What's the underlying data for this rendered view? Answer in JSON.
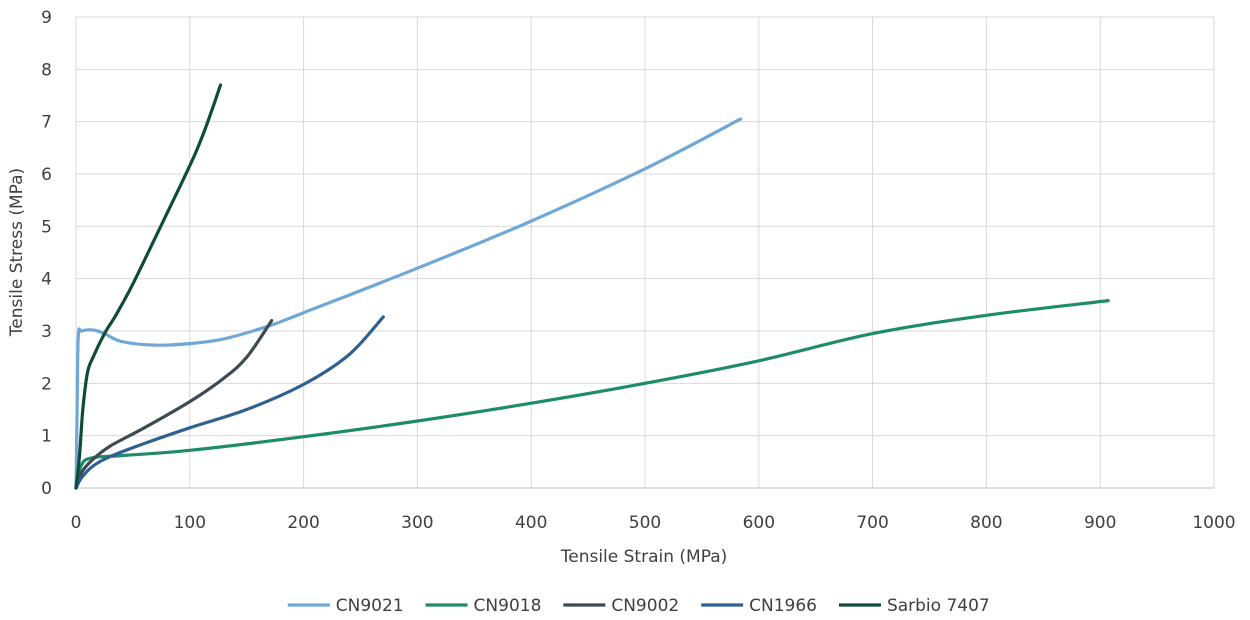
{
  "chart_data": {
    "type": "line",
    "title": "",
    "xlabel": "Tensile Strain (MPa)",
    "ylabel": "Tensile Stress (MPa)",
    "xlim": [
      0,
      1000
    ],
    "ylim": [
      0,
      9
    ],
    "xticks": [
      0,
      100,
      200,
      300,
      400,
      500,
      600,
      700,
      800,
      900,
      1000
    ],
    "yticks": [
      0,
      1,
      2,
      3,
      4,
      5,
      6,
      7,
      8,
      9
    ],
    "grid": true,
    "legend_position": "bottom",
    "series": [
      {
        "name": "CN9021",
        "color": "#6fa8d6",
        "points": [
          [
            0,
            0
          ],
          [
            1,
            1.5
          ],
          [
            2,
            2.9
          ],
          [
            5,
            3.0
          ],
          [
            15,
            3.02
          ],
          [
            25,
            2.95
          ],
          [
            40,
            2.8
          ],
          [
            70,
            2.73
          ],
          [
            100,
            2.76
          ],
          [
            130,
            2.85
          ],
          [
            170,
            3.1
          ],
          [
            200,
            3.35
          ],
          [
            300,
            4.2
          ],
          [
            400,
            5.1
          ],
          [
            500,
            6.1
          ],
          [
            584,
            7.05
          ]
        ]
      },
      {
        "name": "CN9018",
        "color": "#1e8c6b",
        "points": [
          [
            0,
            0
          ],
          [
            5,
            0.45
          ],
          [
            15,
            0.58
          ],
          [
            40,
            0.62
          ],
          [
            100,
            0.72
          ],
          [
            200,
            0.98
          ],
          [
            300,
            1.28
          ],
          [
            400,
            1.62
          ],
          [
            500,
            2.0
          ],
          [
            600,
            2.43
          ],
          [
            700,
            2.95
          ],
          [
            800,
            3.3
          ],
          [
            907,
            3.58
          ]
        ]
      },
      {
        "name": "CN9002",
        "color": "#3d4a52",
        "points": [
          [
            0,
            0
          ],
          [
            5,
            0.3
          ],
          [
            15,
            0.55
          ],
          [
            30,
            0.8
          ],
          [
            60,
            1.15
          ],
          [
            100,
            1.65
          ],
          [
            130,
            2.1
          ],
          [
            150,
            2.5
          ],
          [
            172,
            3.2
          ]
        ]
      },
      {
        "name": "CN1966",
        "color": "#2e6190",
        "points": [
          [
            0,
            0
          ],
          [
            5,
            0.2
          ],
          [
            15,
            0.42
          ],
          [
            30,
            0.6
          ],
          [
            60,
            0.85
          ],
          [
            100,
            1.15
          ],
          [
            150,
            1.5
          ],
          [
            200,
            1.98
          ],
          [
            240,
            2.55
          ],
          [
            270,
            3.27
          ]
        ]
      },
      {
        "name": "Sarbio 7407",
        "color": "#0e4d34",
        "points": [
          [
            0,
            0
          ],
          [
            3,
            0.6
          ],
          [
            6,
            1.5
          ],
          [
            10,
            2.2
          ],
          [
            15,
            2.5
          ],
          [
            25,
            2.95
          ],
          [
            35,
            3.3
          ],
          [
            50,
            3.9
          ],
          [
            70,
            4.8
          ],
          [
            90,
            5.7
          ],
          [
            105,
            6.4
          ],
          [
            115,
            6.95
          ],
          [
            127,
            7.7
          ]
        ]
      }
    ]
  }
}
